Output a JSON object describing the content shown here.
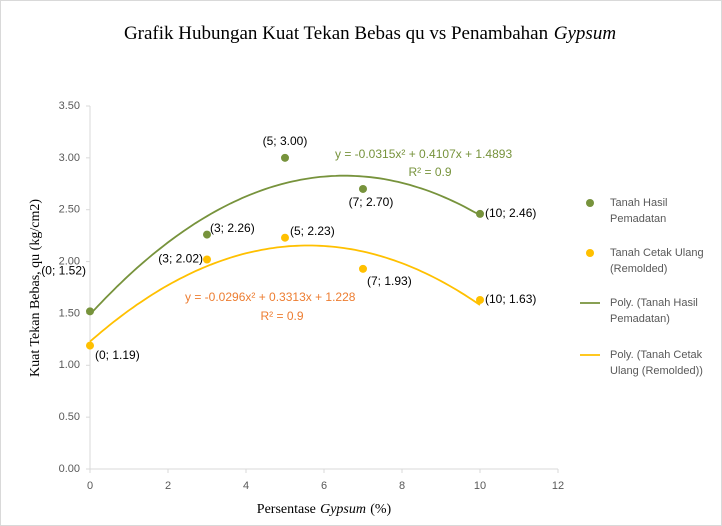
{
  "chart_data": {
    "type": "scatter",
    "title": [
      {
        "text": "Grafik Hubungan Kuat Tekan Bebas qu vs Penambahan"
      },
      {
        "text": "Gypsum",
        "italic": true
      }
    ],
    "xlabel": [
      {
        "text": "Persentase"
      },
      {
        "text": "Gypsum",
        "italic": true
      },
      {
        "text": "(%)"
      }
    ],
    "ylabel": "Kuat Tekan Bebas,  qu (kg/cm2)",
    "xlim": [
      0,
      12
    ],
    "xticks": [
      0,
      2,
      4,
      6,
      8,
      10,
      12
    ],
    "ylim": [
      0,
      3.5
    ],
    "yticks": [
      {
        "value": 0,
        "label": "0.00"
      },
      {
        "value": 0.5,
        "label": "0.50"
      },
      {
        "value": 1,
        "label": "1.00"
      },
      {
        "value": 1.5,
        "label": "1.50"
      },
      {
        "value": 2,
        "label": "2.00"
      },
      {
        "value": 2.5,
        "label": "2.50"
      },
      {
        "value": 3,
        "label": "3.00"
      },
      {
        "value": 3.5,
        "label": "3.50"
      }
    ],
    "grid": false,
    "legend": "right",
    "series": [
      {
        "name": "Tanah Hasil Pemadatan",
        "color": "#77933c",
        "x": [
          0,
          3,
          5,
          7,
          10
        ],
        "values": [
          1.52,
          2.26,
          3.0,
          2.7,
          2.46
        ],
        "value_labels": [
          "(0; 1.52)",
          "(3; 2.26)",
          "(5; 3.00)",
          "(7; 2.70)",
          "(10; 2.46)"
        ]
      },
      {
        "name": "Tanah Cetak Ulang (Remolded)",
        "color": "#ffc000",
        "x": [
          0,
          3,
          5,
          7,
          10
        ],
        "values": [
          1.19,
          2.02,
          2.23,
          1.93,
          1.63
        ],
        "value_labels": [
          "(0; 1.19)",
          "(3; 2.02)",
          "(5; 2.23)",
          "(7; 1.93)",
          "(10; 1.63)"
        ]
      }
    ],
    "trendlines": [
      {
        "name": "Poly. (Tanah Hasil Pemadatan)",
        "color": "#77933c",
        "label_color": "#77933c",
        "coefficients": [
          -0.0315,
          0.4107,
          1.4893
        ],
        "equation": "y = -0.0315x² + 0.4107x + 1.4893",
        "r2": "R² = 0.9"
      },
      {
        "name": "Poly. (Tanah Cetak Ulang (Remolded))",
        "color": "#ffc000",
        "label_color": "#ed7d31",
        "coefficients": [
          -0.0296,
          0.3313,
          1.228
        ],
        "equation": "y = -0.0296x² + 0.3313x + 1.228",
        "r2": "R² = 0.9"
      }
    ]
  }
}
